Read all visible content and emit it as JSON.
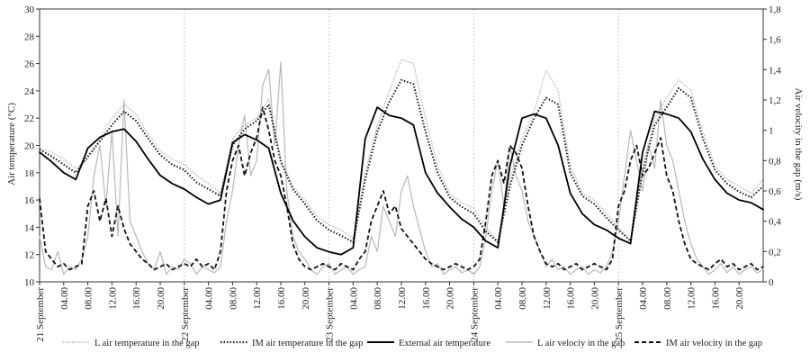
{
  "chart_data": {
    "type": "line",
    "ylabel_left": "Air temperature (°C)",
    "ylabel_right": "Air velocity in the gap (m/s)",
    "ylim_left": [
      10,
      30
    ],
    "ylim_right": [
      0,
      1.8
    ],
    "yticks_left": [
      "10",
      "12",
      "14",
      "16",
      "18",
      "20",
      "22",
      "24",
      "26",
      "28",
      "30"
    ],
    "yticks_right": [
      "0",
      "0,2",
      "0,4",
      "0,6",
      "0,8",
      "1",
      "1,2",
      "1,4",
      "1,6",
      "1,8"
    ],
    "x_tick_labels": [
      "21 September",
      "04.00",
      "08.00",
      "12.00",
      "16.00",
      "20.00",
      "22 September",
      "04.00",
      "08.00",
      "12.00",
      "16.00",
      "20.00",
      "23 September",
      "04.00",
      "08.00",
      "12.00",
      "16.00",
      "20.00",
      "24 September",
      "04.00",
      "08.00",
      "12.00",
      "16.00",
      "20.00",
      "25 September",
      "04.00",
      "08.00",
      "12.00",
      "16.00",
      "20.00"
    ],
    "x_hours_per_day": 24,
    "days": 5,
    "gridlines": "dotted vertical at each day boundary",
    "legend_position": "bottom",
    "series": [
      {
        "name": "L air temperature in the gap",
        "axis": "left",
        "style": "dotted-thin",
        "color": "#8a8a8a",
        "x": [
          0,
          2,
          4,
          6,
          8,
          10,
          12,
          14,
          16,
          18,
          20,
          22,
          24,
          26,
          28,
          30,
          32,
          34,
          36,
          38,
          40,
          42,
          44,
          46,
          48,
          50,
          52,
          54,
          56,
          58,
          60,
          62,
          64,
          66,
          68,
          70,
          72,
          74,
          76,
          78,
          80,
          82,
          84,
          86,
          88,
          90,
          92,
          94,
          96,
          98,
          100,
          102,
          104,
          106,
          108,
          110,
          112,
          114,
          116,
          118,
          120
        ],
        "values": [
          19.8,
          19.5,
          19.0,
          18.3,
          19.0,
          20.5,
          22.0,
          23.0,
          22.3,
          20.8,
          19.6,
          19.0,
          18.6,
          17.8,
          17.2,
          16.5,
          20.5,
          21.5,
          22.0,
          23.4,
          19.0,
          17.0,
          16.0,
          14.8,
          14.2,
          13.8,
          13.2,
          18.0,
          21.5,
          24.0,
          26.3,
          26.0,
          22.0,
          18.5,
          16.5,
          15.8,
          15.4,
          14.0,
          13.0,
          17.5,
          20.5,
          22.5,
          25.5,
          24.0,
          18.5,
          16.5,
          16.0,
          15.0,
          14.0,
          13.0,
          18.5,
          22.0,
          23.5,
          24.8,
          24.0,
          21.0,
          18.5,
          17.5,
          17.0,
          16.5,
          17.5
        ]
      },
      {
        "name": "IM air temperature in the gap",
        "axis": "left",
        "style": "dotted-thick",
        "color": "#1a1a1a",
        "x": [
          0,
          2,
          4,
          6,
          8,
          10,
          12,
          14,
          16,
          18,
          20,
          22,
          24,
          26,
          28,
          30,
          32,
          34,
          36,
          38,
          40,
          42,
          44,
          46,
          48,
          50,
          52,
          54,
          56,
          58,
          60,
          62,
          64,
          66,
          68,
          70,
          72,
          74,
          76,
          78,
          80,
          82,
          84,
          86,
          88,
          90,
          92,
          94,
          96,
          98,
          100,
          102,
          104,
          106,
          108,
          110,
          112,
          114,
          116,
          118,
          120
        ],
        "values": [
          19.7,
          19.2,
          18.6,
          18.0,
          19.2,
          20.3,
          21.5,
          22.5,
          21.8,
          20.5,
          19.3,
          18.6,
          18.2,
          17.3,
          16.8,
          16.3,
          20.0,
          21.2,
          21.8,
          23.0,
          18.8,
          16.8,
          15.7,
          14.5,
          13.8,
          13.4,
          12.9,
          17.5,
          21.0,
          23.2,
          24.8,
          24.5,
          21.0,
          18.0,
          16.2,
          15.5,
          15.0,
          13.7,
          12.9,
          17.0,
          20.0,
          22.0,
          23.5,
          23.0,
          18.0,
          16.3,
          15.7,
          14.7,
          13.8,
          13.0,
          18.0,
          21.5,
          22.8,
          24.2,
          23.5,
          20.5,
          18.2,
          17.2,
          16.6,
          16.2,
          17.0
        ]
      },
      {
        "name": "External air temperature",
        "axis": "left",
        "style": "solid-thick",
        "color": "#000000",
        "x": [
          0,
          2,
          4,
          6,
          8,
          10,
          12,
          14,
          16,
          18,
          20,
          22,
          24,
          26,
          28,
          30,
          32,
          34,
          36,
          38,
          40,
          42,
          44,
          46,
          48,
          50,
          52,
          54,
          56,
          58,
          60,
          62,
          64,
          66,
          68,
          70,
          72,
          74,
          76,
          78,
          80,
          82,
          84,
          86,
          88,
          90,
          92,
          94,
          96,
          98,
          100,
          102,
          104,
          106,
          108,
          110,
          112,
          114,
          116,
          118,
          120
        ],
        "values": [
          19.5,
          18.8,
          18.0,
          17.5,
          19.8,
          20.6,
          21.0,
          21.2,
          20.3,
          19.0,
          17.8,
          17.2,
          16.8,
          16.2,
          15.7,
          16.0,
          20.2,
          20.8,
          20.4,
          19.8,
          16.5,
          14.5,
          13.3,
          12.5,
          12.2,
          12.0,
          12.5,
          20.5,
          22.8,
          22.2,
          22.0,
          21.5,
          18.0,
          16.5,
          15.5,
          14.6,
          14.0,
          13.0,
          12.5,
          18.5,
          22.0,
          22.3,
          22.0,
          20.0,
          16.5,
          15.0,
          14.2,
          13.8,
          13.2,
          12.8,
          19.5,
          22.5,
          22.3,
          22.0,
          21.0,
          19.0,
          17.5,
          16.5,
          16.0,
          15.8,
          15.3
        ]
      },
      {
        "name": "L air velociy in the gap",
        "axis": "right",
        "style": "solid-thin",
        "color": "#b8b8b8",
        "x": [
          0,
          1,
          2,
          3,
          4,
          5,
          6,
          7,
          8,
          9,
          10,
          11,
          12,
          13,
          14,
          15,
          16,
          17,
          18,
          19,
          20,
          21,
          22,
          23,
          24,
          25,
          26,
          27,
          28,
          29,
          30,
          31,
          32,
          33,
          34,
          35,
          36,
          37,
          38,
          39,
          40,
          41,
          42,
          43,
          44,
          45,
          46,
          47,
          48,
          49,
          50,
          51,
          52,
          53,
          54,
          55,
          56,
          57,
          58,
          59,
          60,
          61,
          62,
          63,
          64,
          65,
          66,
          67,
          68,
          69,
          70,
          71,
          72,
          73,
          74,
          75,
          76,
          77,
          78,
          79,
          80,
          81,
          82,
          83,
          84,
          85,
          86,
          87,
          88,
          89,
          90,
          91,
          92,
          93,
          94,
          95,
          96,
          97,
          98,
          99,
          100,
          101,
          102,
          103,
          104,
          105,
          106,
          107,
          108,
          109,
          110,
          111,
          112,
          113,
          114,
          115,
          116,
          117,
          118,
          119,
          120
        ],
        "values": [
          0.3,
          0.1,
          0.08,
          0.2,
          0.05,
          0.1,
          0.08,
          0.15,
          0.3,
          0.7,
          0.9,
          0.5,
          1.0,
          0.3,
          1.2,
          0.4,
          0.3,
          0.2,
          0.12,
          0.08,
          0.2,
          0.05,
          0.1,
          0.08,
          0.15,
          0.12,
          0.05,
          0.1,
          0.08,
          0.06,
          0.1,
          0.4,
          0.6,
          0.9,
          1.1,
          0.7,
          0.8,
          1.3,
          1.4,
          0.9,
          1.45,
          0.6,
          0.3,
          0.2,
          0.15,
          0.08,
          0.05,
          0.1,
          0.12,
          0.05,
          0.08,
          0.1,
          0.05,
          0.08,
          0.1,
          0.3,
          0.2,
          0.5,
          0.4,
          0.3,
          0.6,
          0.7,
          0.5,
          0.35,
          0.2,
          0.1,
          0.12,
          0.05,
          0.08,
          0.1,
          0.06,
          0.08,
          0.05,
          0.1,
          0.3,
          0.6,
          0.8,
          0.5,
          0.9,
          0.7,
          0.6,
          0.4,
          0.3,
          0.2,
          0.1,
          0.15,
          0.08,
          0.1,
          0.05,
          0.08,
          0.1,
          0.05,
          0.08,
          0.06,
          0.1,
          0.2,
          0.4,
          0.7,
          1.0,
          0.8,
          0.6,
          0.9,
          0.75,
          1.2,
          0.9,
          0.8,
          0.6,
          0.4,
          0.25,
          0.15,
          0.1,
          0.05,
          0.08,
          0.12,
          0.06,
          0.1,
          0.05,
          0.08,
          0.1,
          0.06,
          0.08
        ]
      },
      {
        "name": "IM air velocity in the gap",
        "axis": "right",
        "style": "dashed-thick",
        "color": "#111111",
        "x": [
          0,
          1,
          2,
          3,
          4,
          5,
          6,
          7,
          8,
          9,
          10,
          11,
          12,
          13,
          14,
          15,
          16,
          17,
          18,
          19,
          20,
          21,
          22,
          23,
          24,
          25,
          26,
          27,
          28,
          29,
          30,
          31,
          32,
          33,
          34,
          35,
          36,
          37,
          38,
          39,
          40,
          41,
          42,
          43,
          44,
          45,
          46,
          47,
          48,
          49,
          50,
          51,
          52,
          53,
          54,
          55,
          56,
          57,
          58,
          59,
          60,
          61,
          62,
          63,
          64,
          65,
          66,
          67,
          68,
          69,
          70,
          71,
          72,
          73,
          74,
          75,
          76,
          77,
          78,
          79,
          80,
          81,
          82,
          83,
          84,
          85,
          86,
          87,
          88,
          89,
          90,
          91,
          92,
          93,
          94,
          95,
          96,
          97,
          98,
          99,
          100,
          101,
          102,
          103,
          104,
          105,
          106,
          107,
          108,
          109,
          110,
          111,
          112,
          113,
          114,
          115,
          116,
          117,
          118,
          119,
          120
        ],
        "values": [
          0.55,
          0.2,
          0.15,
          0.1,
          0.12,
          0.08,
          0.1,
          0.12,
          0.5,
          0.6,
          0.4,
          0.55,
          0.3,
          0.5,
          0.35,
          0.25,
          0.2,
          0.15,
          0.12,
          0.08,
          0.1,
          0.12,
          0.08,
          0.1,
          0.12,
          0.1,
          0.15,
          0.1,
          0.12,
          0.08,
          0.2,
          0.6,
          0.8,
          0.9,
          0.7,
          0.85,
          0.95,
          1.15,
          1.0,
          0.8,
          0.7,
          0.5,
          0.25,
          0.15,
          0.1,
          0.08,
          0.1,
          0.12,
          0.1,
          0.08,
          0.12,
          0.1,
          0.08,
          0.15,
          0.2,
          0.4,
          0.5,
          0.6,
          0.45,
          0.5,
          0.35,
          0.3,
          0.25,
          0.2,
          0.15,
          0.12,
          0.1,
          0.08,
          0.1,
          0.12,
          0.1,
          0.08,
          0.1,
          0.15,
          0.4,
          0.7,
          0.8,
          0.65,
          0.9,
          0.85,
          0.75,
          0.5,
          0.3,
          0.2,
          0.12,
          0.1,
          0.12,
          0.08,
          0.1,
          0.12,
          0.08,
          0.1,
          0.12,
          0.1,
          0.08,
          0.15,
          0.5,
          0.6,
          0.8,
          0.9,
          0.7,
          0.75,
          0.85,
          0.95,
          0.7,
          0.6,
          0.4,
          0.25,
          0.15,
          0.12,
          0.1,
          0.08,
          0.12,
          0.15,
          0.1,
          0.12,
          0.08,
          0.1,
          0.12,
          0.08,
          0.1
        ]
      }
    ]
  }
}
